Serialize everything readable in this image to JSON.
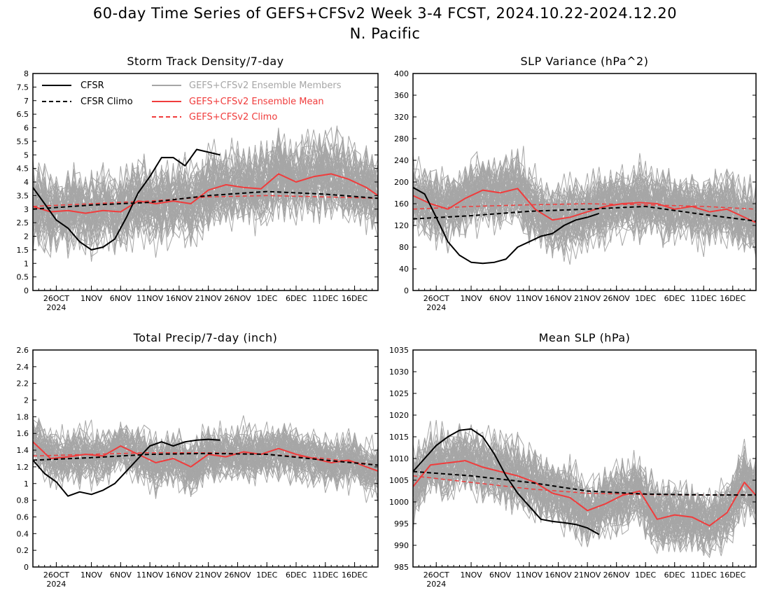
{
  "figure": {
    "title_line1": "60-day Time Series of GEFS+CFSv2 Week 3-4 FCST, 2024.10.22-2024.12.20",
    "title_line2": "N. Pacific"
  },
  "legend": {
    "cfsr": "CFSR",
    "cfsr_climo": "CFSR Climo",
    "members": "GEFS+CFSv2 Ensemble Members",
    "ens_mean": "GEFS+CFSv2 Ensemble Mean",
    "gefs_climo": "GEFS+CFSv2 Climo"
  },
  "colors": {
    "cfsr": "#000000",
    "members": "#a6a6a6",
    "ens_mean": "#f03c3c",
    "gefs_climo": "#f03c3c",
    "members_legend_text": "#a6a6a6",
    "mean_legend_text": "#f03c3c"
  },
  "x_axis": {
    "start_date": "2024-10-22",
    "days": 60,
    "tick_labels": [
      "26OCT",
      "1NOV",
      "6NOV",
      "11NOV",
      "16NOV",
      "21NOV",
      "26NOV",
      "1DEC",
      "6DEC",
      "11DEC",
      "16DEC"
    ],
    "tick_dates": [
      "2024-10-26",
      "2024-11-01",
      "2024-11-06",
      "2024-11-11",
      "2024-11-16",
      "2024-11-21",
      "2024-11-26",
      "2024-12-01",
      "2024-12-06",
      "2024-12-11",
      "2024-12-16"
    ],
    "year_label": "2024"
  },
  "chart_data": [
    {
      "type": "line",
      "title": "Storm Track Density/7-day",
      "ylim": [
        0,
        8
      ],
      "yticks": [
        "0",
        "0.5",
        "1",
        "1.5",
        "2",
        "2.5",
        "3",
        "3.5",
        "4",
        "4.5",
        "5",
        "5.5",
        "6",
        "6.5",
        "7",
        "7.5",
        "8"
      ],
      "member_count": 60,
      "member_spread": 1.0,
      "series": [
        {
          "name": "CFSR",
          "x": [
            "2024-10-22",
            "2024-10-24",
            "2024-10-26",
            "2024-10-28",
            "2024-10-30",
            "2024-11-01",
            "2024-11-03",
            "2024-11-05",
            "2024-11-07",
            "2024-11-09",
            "2024-11-11",
            "2024-11-13",
            "2024-11-15",
            "2024-11-17",
            "2024-11-19",
            "2024-11-21",
            "2024-11-23"
          ],
          "values": [
            3.8,
            3.2,
            2.6,
            2.3,
            1.8,
            1.5,
            1.6,
            1.9,
            2.7,
            3.6,
            4.2,
            4.9,
            4.9,
            4.6,
            5.2,
            5.1,
            5.0
          ]
        },
        {
          "name": "CFSR Climo",
          "x": [
            "2024-10-22",
            "2024-11-01",
            "2024-11-11",
            "2024-11-21",
            "2024-12-01",
            "2024-12-11",
            "2024-12-20"
          ],
          "values": [
            3.0,
            3.15,
            3.25,
            3.5,
            3.65,
            3.55,
            3.4
          ]
        },
        {
          "name": "GEFS+CFSv2 Ensemble Mean",
          "x": [
            "2024-10-22",
            "2024-10-25",
            "2024-10-28",
            "2024-10-31",
            "2024-11-03",
            "2024-11-06",
            "2024-11-09",
            "2024-11-12",
            "2024-11-15",
            "2024-11-18",
            "2024-11-21",
            "2024-11-24",
            "2024-11-27",
            "2024-11-30",
            "2024-12-03",
            "2024-12-06",
            "2024-12-09",
            "2024-12-12",
            "2024-12-15",
            "2024-12-18",
            "2024-12-20"
          ],
          "values": [
            3.1,
            2.9,
            2.95,
            2.85,
            2.95,
            2.9,
            3.3,
            3.2,
            3.3,
            3.2,
            3.7,
            3.9,
            3.8,
            3.75,
            4.3,
            4.0,
            4.2,
            4.3,
            4.1,
            3.8,
            3.5
          ]
        },
        {
          "name": "GEFS+CFSv2 Climo",
          "x": [
            "2024-10-22",
            "2024-11-01",
            "2024-11-11",
            "2024-11-21",
            "2024-12-01",
            "2024-12-11",
            "2024-12-20"
          ],
          "values": [
            3.1,
            3.2,
            3.3,
            3.45,
            3.5,
            3.45,
            3.4
          ]
        }
      ]
    },
    {
      "type": "line",
      "title": "SLP Variance (hPa^2)",
      "ylim": [
        0,
        400
      ],
      "yticks": [
        "0",
        "40",
        "80",
        "120",
        "160",
        "200",
        "240",
        "280",
        "320",
        "360",
        "400"
      ],
      "member_count": 60,
      "member_spread": 45,
      "series": [
        {
          "name": "CFSR",
          "x": [
            "2024-10-22",
            "2024-10-24",
            "2024-10-26",
            "2024-10-28",
            "2024-10-30",
            "2024-11-01",
            "2024-11-03",
            "2024-11-05",
            "2024-11-07",
            "2024-11-09",
            "2024-11-11",
            "2024-11-13",
            "2024-11-15",
            "2024-11-17",
            "2024-11-19",
            "2024-11-21",
            "2024-11-23"
          ],
          "values": [
            190,
            178,
            135,
            90,
            65,
            52,
            50,
            52,
            58,
            80,
            90,
            100,
            105,
            120,
            130,
            135,
            142
          ]
        },
        {
          "name": "CFSR Climo",
          "x": [
            "2024-10-22",
            "2024-11-01",
            "2024-11-11",
            "2024-11-21",
            "2024-12-01",
            "2024-12-11",
            "2024-12-20"
          ],
          "values": [
            132,
            138,
            146,
            150,
            155,
            140,
            128
          ]
        },
        {
          "name": "GEFS+CFSv2 Ensemble Mean",
          "x": [
            "2024-10-22",
            "2024-10-25",
            "2024-10-28",
            "2024-10-31",
            "2024-11-03",
            "2024-11-06",
            "2024-11-09",
            "2024-11-12",
            "2024-11-15",
            "2024-11-18",
            "2024-11-21",
            "2024-11-24",
            "2024-11-27",
            "2024-11-30",
            "2024-12-03",
            "2024-12-06",
            "2024-12-09",
            "2024-12-12",
            "2024-12-15",
            "2024-12-18",
            "2024-12-20"
          ],
          "values": [
            175,
            160,
            150,
            170,
            185,
            180,
            188,
            150,
            130,
            135,
            145,
            155,
            160,
            162,
            160,
            150,
            155,
            145,
            150,
            135,
            125
          ]
        },
        {
          "name": "GEFS+CFSv2 Climo",
          "x": [
            "2024-10-22",
            "2024-11-01",
            "2024-11-11",
            "2024-11-21",
            "2024-12-01",
            "2024-12-11",
            "2024-12-20"
          ],
          "values": [
            150,
            155,
            158,
            160,
            158,
            155,
            150
          ]
        }
      ]
    },
    {
      "type": "line",
      "title": "Total Precip/7-day (inch)",
      "ylim": [
        0,
        2.6
      ],
      "yticks": [
        "0",
        "0.2",
        "0.4",
        "0.6",
        "0.8",
        "1",
        "1.2",
        "1.4",
        "1.6",
        "1.8",
        "2",
        "2.2",
        "2.4",
        "2.6"
      ],
      "member_count": 60,
      "member_spread": 0.22,
      "series": [
        {
          "name": "CFSR",
          "x": [
            "2024-10-22",
            "2024-10-24",
            "2024-10-26",
            "2024-10-28",
            "2024-10-30",
            "2024-11-01",
            "2024-11-03",
            "2024-11-05",
            "2024-11-07",
            "2024-11-09",
            "2024-11-11",
            "2024-11-13",
            "2024-11-15",
            "2024-11-17",
            "2024-11-19",
            "2024-11-21",
            "2024-11-23"
          ],
          "values": [
            1.28,
            1.12,
            1.02,
            0.85,
            0.9,
            0.87,
            0.92,
            1.0,
            1.15,
            1.3,
            1.45,
            1.5,
            1.45,
            1.5,
            1.52,
            1.53,
            1.52
          ]
        },
        {
          "name": "CFSR Climo",
          "x": [
            "2024-10-22",
            "2024-11-01",
            "2024-11-11",
            "2024-11-21",
            "2024-12-01",
            "2024-12-11",
            "2024-12-20"
          ],
          "values": [
            1.28,
            1.31,
            1.35,
            1.36,
            1.35,
            1.28,
            1.22
          ]
        },
        {
          "name": "GEFS+CFSv2 Ensemble Mean",
          "x": [
            "2024-10-22",
            "2024-10-25",
            "2024-10-28",
            "2024-10-31",
            "2024-11-03",
            "2024-11-06",
            "2024-11-09",
            "2024-11-12",
            "2024-11-15",
            "2024-11-18",
            "2024-11-21",
            "2024-11-24",
            "2024-11-27",
            "2024-11-30",
            "2024-12-03",
            "2024-12-06",
            "2024-12-09",
            "2024-12-12",
            "2024-12-15",
            "2024-12-18",
            "2024-12-20"
          ],
          "values": [
            1.5,
            1.3,
            1.32,
            1.35,
            1.33,
            1.45,
            1.35,
            1.25,
            1.3,
            1.2,
            1.35,
            1.32,
            1.38,
            1.35,
            1.42,
            1.35,
            1.3,
            1.25,
            1.28,
            1.2,
            1.15
          ]
        },
        {
          "name": "GEFS+CFSv2 Climo",
          "x": [
            "2024-10-22",
            "2024-11-01",
            "2024-11-11",
            "2024-11-21",
            "2024-12-01",
            "2024-12-11",
            "2024-12-20"
          ],
          "values": [
            1.33,
            1.35,
            1.37,
            1.37,
            1.35,
            1.3,
            1.22
          ]
        }
      ]
    },
    {
      "type": "line",
      "title": "Mean SLP (hPa)",
      "ylim": [
        985,
        1035
      ],
      "yticks": [
        "985",
        "990",
        "995",
        "1000",
        "1005",
        "1010",
        "1015",
        "1020",
        "1025",
        "1030",
        "1035"
      ],
      "member_count": 60,
      "member_spread": 5.5,
      "series": [
        {
          "name": "CFSR",
          "x": [
            "2024-10-22",
            "2024-10-24",
            "2024-10-26",
            "2024-10-28",
            "2024-10-30",
            "2024-11-01",
            "2024-11-03",
            "2024-11-05",
            "2024-11-07",
            "2024-11-09",
            "2024-11-11",
            "2024-11-13",
            "2024-11-15",
            "2024-11-17",
            "2024-11-19",
            "2024-11-21",
            "2024-11-23"
          ],
          "values": [
            1007,
            1010,
            1013,
            1015,
            1016.5,
            1016.8,
            1015,
            1011,
            1006,
            1002,
            999,
            996,
            995.5,
            995.2,
            994.8,
            994,
            992.5
          ]
        },
        {
          "name": "CFSR Climo",
          "x": [
            "2024-10-22",
            "2024-11-01",
            "2024-11-11",
            "2024-11-21",
            "2024-12-01",
            "2024-12-11",
            "2024-12-20"
          ],
          "values": [
            1007,
            1006,
            1004.5,
            1002.5,
            1001.8,
            1001.6,
            1001.6
          ]
        },
        {
          "name": "GEFS+CFSv2 Ensemble Mean",
          "x": [
            "2024-10-22",
            "2024-10-25",
            "2024-10-28",
            "2024-10-31",
            "2024-11-03",
            "2024-11-06",
            "2024-11-09",
            "2024-11-12",
            "2024-11-15",
            "2024-11-18",
            "2024-11-21",
            "2024-11-24",
            "2024-11-27",
            "2024-11-30",
            "2024-12-03",
            "2024-12-06",
            "2024-12-09",
            "2024-12-12",
            "2024-12-15",
            "2024-12-18",
            "2024-12-20"
          ],
          "values": [
            1003.5,
            1008.5,
            1009,
            1009.5,
            1008,
            1007,
            1006,
            1004.5,
            1002,
            1001,
            998,
            999.5,
            1001.5,
            1002.5,
            996,
            997,
            996.5,
            994.5,
            997.5,
            1004.5,
            1001.5
          ]
        },
        {
          "name": "GEFS+CFSv2 Climo",
          "x": [
            "2024-10-22",
            "2024-11-01",
            "2024-11-11",
            "2024-11-21",
            "2024-12-01",
            "2024-12-11",
            "2024-12-20"
          ],
          "values": [
            1006,
            1004.5,
            1003,
            1002,
            1001.7,
            1001.6,
            1001.6
          ]
        }
      ]
    }
  ]
}
